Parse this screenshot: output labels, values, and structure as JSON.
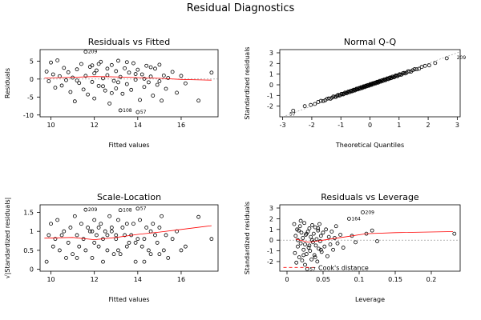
{
  "figure": {
    "title": "Residual Diagnostics"
  },
  "chart_data": [
    {
      "id": "p1",
      "type": "scatter",
      "title": "Residuals vs Fitted",
      "xlabel": "Fitted values",
      "ylabel": "Residuals",
      "xlim": [
        9.5,
        17.7
      ],
      "ylim": [
        -10.5,
        8.2
      ],
      "xticks": [
        10,
        12,
        14,
        16
      ],
      "yticks": [
        -10,
        -5,
        0,
        5
      ],
      "refline": {
        "type": "h",
        "value": 0
      },
      "smooth": [
        [
          9.7,
          0.3
        ],
        [
          11,
          0.5
        ],
        [
          12,
          0.7
        ],
        [
          13,
          0.6
        ],
        [
          14,
          0.4
        ],
        [
          15,
          0.2
        ],
        [
          16,
          -0.1
        ],
        [
          17.4,
          -0.3
        ]
      ],
      "annotations": [
        {
          "x": 11.6,
          "y": 7.6,
          "text": "209"
        },
        {
          "x": 13.2,
          "y": -8.7,
          "text": "108"
        },
        {
          "x": 14.0,
          "y": -9.2,
          "text": "57"
        }
      ],
      "points": [
        [
          9.8,
          2.1
        ],
        [
          9.9,
          -0.6
        ],
        [
          10.0,
          4.6
        ],
        [
          10.1,
          1.3
        ],
        [
          10.2,
          -2.4
        ],
        [
          10.3,
          5.2
        ],
        [
          10.4,
          0.8
        ],
        [
          10.5,
          -1.8
        ],
        [
          10.6,
          3.1
        ],
        [
          10.7,
          -0.3
        ],
        [
          10.8,
          1.9
        ],
        [
          10.9,
          -3.6
        ],
        [
          11.0,
          0.4
        ],
        [
          11.1,
          -6.2
        ],
        [
          11.2,
          2.7
        ],
        [
          11.3,
          -1.1
        ],
        [
          11.4,
          4.2
        ],
        [
          11.5,
          -2.9
        ],
        [
          11.6,
          7.6
        ],
        [
          11.6,
          0.9
        ],
        [
          11.7,
          -4.3
        ],
        [
          11.8,
          3.4
        ],
        [
          11.9,
          -0.8
        ],
        [
          12.0,
          1.6
        ],
        [
          12.0,
          -5.4
        ],
        [
          12.1,
          2.4
        ],
        [
          12.2,
          -1.9
        ],
        [
          12.3,
          4.8
        ],
        [
          12.4,
          0.2
        ],
        [
          12.5,
          -3.2
        ],
        [
          12.6,
          1.1
        ],
        [
          12.7,
          -6.8
        ],
        [
          12.8,
          3.9
        ],
        [
          12.9,
          -0.5
        ],
        [
          13.0,
          2.2
        ],
        [
          13.0,
          -2.6
        ],
        [
          13.1,
          5.1
        ],
        [
          13.2,
          -8.7
        ],
        [
          13.2,
          0.6
        ],
        [
          13.3,
          -4.1
        ],
        [
          13.4,
          3.0
        ],
        [
          13.5,
          -1.4
        ],
        [
          13.6,
          1.8
        ],
        [
          13.7,
          -3.0
        ],
        [
          13.8,
          4.4
        ],
        [
          13.9,
          -0.2
        ],
        [
          14.0,
          -9.2
        ],
        [
          14.0,
          2.6
        ],
        [
          14.1,
          -5.8
        ],
        [
          14.2,
          1.3
        ],
        [
          14.3,
          -2.2
        ],
        [
          14.4,
          3.7
        ],
        [
          14.5,
          -0.9
        ],
        [
          14.6,
          0.7
        ],
        [
          14.7,
          -4.6
        ],
        [
          14.8,
          2.9
        ],
        [
          14.9,
          -1.6
        ],
        [
          15.0,
          4.0
        ],
        [
          15.1,
          -6.0
        ],
        [
          15.2,
          1.0
        ],
        [
          15.3,
          -2.7
        ],
        [
          15.4,
          0.3
        ],
        [
          15.6,
          2.0
        ],
        [
          15.8,
          -3.8
        ],
        [
          16.0,
          0.9
        ],
        [
          16.2,
          -1.2
        ],
        [
          16.8,
          -6.0
        ],
        [
          17.4,
          1.8
        ],
        [
          12.2,
          4.2
        ],
        [
          13.5,
          4.7
        ],
        [
          11.2,
          -0.4
        ],
        [
          12.8,
          -3.9
        ],
        [
          14.6,
          3.3
        ],
        [
          13.9,
          1.4
        ],
        [
          12.4,
          -2.0
        ],
        [
          11.9,
          3.8
        ],
        [
          14.3,
          0.1
        ],
        [
          13.1,
          -0.9
        ],
        [
          12.6,
          2.9
        ],
        [
          15.0,
          -0.6
        ]
      ]
    },
    {
      "id": "p2",
      "type": "scatter",
      "title": "Normal Q-Q",
      "xlabel": "Theoretical Quantiles",
      "ylabel": "Standardized residuals",
      "xlim": [
        -3.1,
        3.1
      ],
      "ylim": [
        -3.0,
        3.3
      ],
      "xticks": [
        -3,
        -2,
        -1,
        0,
        1,
        2,
        3
      ],
      "yticks": [
        -2,
        -1,
        0,
        1,
        2,
        3
      ],
      "refline": {
        "type": "diag"
      },
      "annotations": [
        {
          "x": 2.9,
          "y": 2.55,
          "text": "209"
        },
        {
          "x": -2.85,
          "y": -2.75,
          "text": "57"
        }
      ],
      "qq_n": 120,
      "qq_range": [
        -2.9,
        2.9
      ]
    },
    {
      "id": "p3",
      "type": "scatter",
      "title": "Scale-Location",
      "xlabel": "Fitted values",
      "ylabel": "√|Standardized residuals|",
      "xlim": [
        9.5,
        17.7
      ],
      "ylim": [
        -0.05,
        1.7
      ],
      "xticks": [
        10,
        12,
        14,
        16
      ],
      "yticks": [
        0.0,
        0.5,
        1.0,
        1.5
      ],
      "smooth": [
        [
          9.7,
          0.82
        ],
        [
          11,
          0.84
        ],
        [
          12,
          0.78
        ],
        [
          13,
          0.84
        ],
        [
          14,
          0.92
        ],
        [
          15,
          0.98
        ],
        [
          16,
          1.05
        ],
        [
          17.4,
          1.15
        ]
      ],
      "annotations": [
        {
          "x": 11.6,
          "y": 1.57,
          "text": "209"
        },
        {
          "x": 13.2,
          "y": 1.56,
          "text": "108"
        },
        {
          "x": 14.0,
          "y": 1.6,
          "text": "57"
        }
      ],
      "points": [
        [
          9.8,
          0.2
        ],
        [
          9.9,
          0.9
        ],
        [
          10.0,
          1.2
        ],
        [
          10.1,
          0.6
        ],
        [
          10.2,
          0.8
        ],
        [
          10.3,
          1.3
        ],
        [
          10.4,
          0.5
        ],
        [
          10.5,
          0.9
        ],
        [
          10.6,
          1.0
        ],
        [
          10.7,
          0.3
        ],
        [
          10.8,
          0.7
        ],
        [
          10.9,
          1.1
        ],
        [
          11.0,
          0.4
        ],
        [
          11.1,
          1.4
        ],
        [
          11.2,
          0.9
        ],
        [
          11.3,
          0.6
        ],
        [
          11.4,
          1.2
        ],
        [
          11.5,
          0.8
        ],
        [
          11.6,
          1.57
        ],
        [
          11.6,
          0.5
        ],
        [
          11.7,
          1.1
        ],
        [
          11.8,
          1.0
        ],
        [
          11.9,
          0.3
        ],
        [
          12.0,
          0.7
        ],
        [
          12.0,
          1.3
        ],
        [
          12.1,
          0.9
        ],
        [
          12.2,
          0.6
        ],
        [
          12.3,
          1.2
        ],
        [
          12.4,
          0.2
        ],
        [
          12.5,
          1.0
        ],
        [
          12.6,
          0.5
        ],
        [
          12.7,
          1.4
        ],
        [
          12.8,
          1.1
        ],
        [
          12.9,
          0.4
        ],
        [
          13.0,
          0.8
        ],
        [
          13.0,
          0.9
        ],
        [
          13.1,
          1.3
        ],
        [
          13.2,
          1.56
        ],
        [
          13.2,
          0.4
        ],
        [
          13.3,
          1.1
        ],
        [
          13.4,
          0.9
        ],
        [
          13.5,
          0.6
        ],
        [
          13.6,
          0.7
        ],
        [
          13.7,
          0.9
        ],
        [
          13.8,
          1.2
        ],
        [
          13.9,
          0.2
        ],
        [
          14.0,
          1.6
        ],
        [
          14.0,
          0.8
        ],
        [
          14.1,
          1.3
        ],
        [
          14.2,
          0.6
        ],
        [
          14.3,
          0.8
        ],
        [
          14.4,
          1.1
        ],
        [
          14.5,
          0.5
        ],
        [
          14.6,
          0.4
        ],
        [
          14.7,
          1.2
        ],
        [
          14.8,
          0.9
        ],
        [
          14.9,
          0.7
        ],
        [
          15.0,
          1.1
        ],
        [
          15.1,
          1.4
        ],
        [
          15.2,
          0.5
        ],
        [
          15.3,
          0.9
        ],
        [
          15.4,
          0.3
        ],
        [
          15.6,
          0.8
        ],
        [
          15.8,
          1.0
        ],
        [
          16.0,
          0.5
        ],
        [
          16.2,
          0.6
        ],
        [
          16.8,
          1.38
        ],
        [
          17.4,
          0.8
        ],
        [
          12.2,
          1.1
        ],
        [
          13.5,
          1.2
        ],
        [
          11.2,
          0.3
        ],
        [
          12.8,
          1.0
        ],
        [
          14.6,
          1.0
        ],
        [
          13.9,
          0.7
        ],
        [
          12.4,
          0.8
        ],
        [
          11.9,
          1.0
        ],
        [
          14.3,
          0.2
        ],
        [
          13.1,
          0.5
        ],
        [
          12.6,
          0.9
        ],
        [
          15.0,
          0.4
        ]
      ]
    },
    {
      "id": "p4",
      "type": "scatter",
      "title": "Residuals vs Leverage",
      "xlabel": "Leverage",
      "ylabel": "Standardized residuals",
      "xlim": [
        -0.01,
        0.24
      ],
      "ylim": [
        -2.9,
        3.3
      ],
      "xticks": [
        0.0,
        0.05,
        0.1,
        0.15,
        0.2
      ],
      "yticks": [
        -2,
        -1,
        0,
        1,
        2,
        3
      ],
      "refline": {
        "type": "h",
        "value": 0
      },
      "legend_text": "Cook's distance",
      "cook_line": [
        [
          -0.005,
          -2.55
        ],
        [
          0.04,
          -2.55
        ]
      ],
      "smooth": [
        [
          0.012,
          0.1
        ],
        [
          0.03,
          -0.2
        ],
        [
          0.05,
          0.0
        ],
        [
          0.08,
          0.3
        ],
        [
          0.11,
          0.6
        ],
        [
          0.15,
          0.7
        ],
        [
          0.23,
          0.8
        ]
      ],
      "annotations": [
        {
          "x": 0.086,
          "y": 2.0,
          "text": "164"
        },
        {
          "x": 0.105,
          "y": 2.6,
          "text": "209"
        },
        {
          "x": 0.028,
          "y": -2.7,
          "text": "57"
        }
      ],
      "points": [
        [
          0.01,
          1.5
        ],
        [
          0.011,
          -1.2
        ],
        [
          0.012,
          0.4
        ],
        [
          0.013,
          -2.1
        ],
        [
          0.014,
          1.0
        ],
        [
          0.015,
          -0.6
        ],
        [
          0.016,
          0.9
        ],
        [
          0.017,
          -1.6
        ],
        [
          0.018,
          1.3
        ],
        [
          0.019,
          -0.3
        ],
        [
          0.02,
          0.7
        ],
        [
          0.021,
          -1.9
        ],
        [
          0.022,
          0.2
        ],
        [
          0.023,
          -0.9
        ],
        [
          0.024,
          1.6
        ],
        [
          0.025,
          -0.4
        ],
        [
          0.026,
          0.5
        ],
        [
          0.027,
          -1.3
        ],
        [
          0.028,
          -2.7
        ],
        [
          0.029,
          0.8
        ],
        [
          0.03,
          -0.7
        ],
        [
          0.031,
          1.1
        ],
        [
          0.032,
          -1.0
        ],
        [
          0.033,
          0.3
        ],
        [
          0.034,
          -1.8
        ],
        [
          0.035,
          1.4
        ],
        [
          0.036,
          -0.2
        ],
        [
          0.037,
          0.6
        ],
        [
          0.038,
          -1.4
        ],
        [
          0.039,
          1.2
        ],
        [
          0.04,
          -0.5
        ],
        [
          0.041,
          0.1
        ],
        [
          0.042,
          -2.0
        ],
        [
          0.043,
          0.9
        ],
        [
          0.044,
          -0.8
        ],
        [
          0.045,
          1.5
        ],
        [
          0.046,
          -0.1
        ],
        [
          0.047,
          0.4
        ],
        [
          0.048,
          -1.1
        ],
        [
          0.05,
          0.7
        ],
        [
          0.052,
          -0.6
        ],
        [
          0.054,
          1.0
        ],
        [
          0.056,
          -1.5
        ],
        [
          0.058,
          0.3
        ],
        [
          0.06,
          -0.4
        ],
        [
          0.062,
          0.8
        ],
        [
          0.064,
          -0.9
        ],
        [
          0.066,
          0.2
        ],
        [
          0.068,
          1.3
        ],
        [
          0.07,
          -0.3
        ],
        [
          0.074,
          0.5
        ],
        [
          0.078,
          -0.7
        ],
        [
          0.086,
          2.0
        ],
        [
          0.09,
          0.4
        ],
        [
          0.095,
          -0.2
        ],
        [
          0.105,
          2.6
        ],
        [
          0.11,
          0.6
        ],
        [
          0.118,
          0.9
        ],
        [
          0.125,
          -0.1
        ],
        [
          0.232,
          0.6
        ],
        [
          0.015,
          0.0
        ],
        [
          0.019,
          1.8
        ],
        [
          0.023,
          -1.4
        ],
        [
          0.027,
          0.6
        ],
        [
          0.031,
          -0.5
        ],
        [
          0.035,
          0.0
        ],
        [
          0.039,
          -1.6
        ],
        [
          0.043,
          1.1
        ],
        [
          0.047,
          -0.9
        ],
        [
          0.025,
          -2.3
        ]
      ]
    }
  ]
}
